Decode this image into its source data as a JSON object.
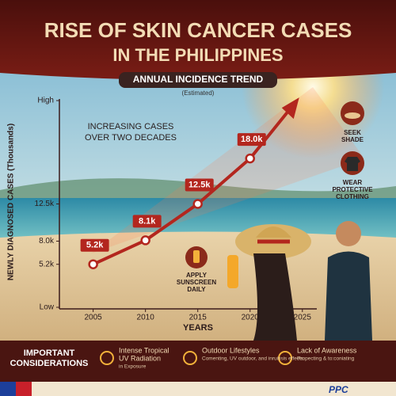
{
  "chart_data": {
    "type": "line",
    "title": [
      "RISE OF SKIN CANCER CASES",
      "IN THE PHILIPPINES"
    ],
    "subtitle": "ANNUAL INCIDENCE TREND",
    "note": "(Estimated)",
    "y_label": "NEWLY DIAGNOSED CASES (Thousands)",
    "x_label": "YEARS",
    "annotation": [
      "INCREASING CASES",
      "OVER TWO DECADES"
    ],
    "x": [
      2005,
      2010,
      2015,
      2020
    ],
    "values": [
      5.2,
      8.1,
      12.5,
      18.0
    ],
    "value_labels": [
      "5.2k",
      "8.1k",
      "12.5k",
      "18.0k"
    ],
    "color": "#b3261e",
    "xlim": [
      2002,
      2026
    ],
    "xticks": [
      2005,
      2010,
      2015,
      2020,
      2025
    ],
    "ylim": [
      0,
      25
    ],
    "yticks": [
      {
        "value": 0,
        "label": "Low"
      },
      {
        "value": 5.2,
        "label": "5.2k"
      },
      {
        "value": 8.0,
        "label": "8.0k"
      },
      {
        "value": 12.5,
        "label": "12.5k"
      },
      {
        "value": 25,
        "label": "High"
      }
    ]
  },
  "tips": [
    [
      "SEEK",
      "SHADE"
    ],
    [
      "WEAR",
      "PROTECTIVE",
      "CLOTHING"
    ],
    [
      "APPLY",
      "SUNSCREEN",
      "DAILY"
    ]
  ],
  "considerations": {
    "title": [
      "IMPORTANT",
      "CONSIDERATIONS"
    ],
    "items": [
      {
        "title": [
          "Intense Tropical",
          "UV Radiation"
        ],
        "text": "in Exposure"
      },
      {
        "title": [
          "Outdoor Lifestyles"
        ],
        "text": "Comenting, UV outdoor, and inruitisis effects"
      },
      {
        "title": [
          "Lack of Awareness"
        ],
        "text": "Propecting & to:coniating"
      }
    ]
  },
  "logo": "PPC"
}
